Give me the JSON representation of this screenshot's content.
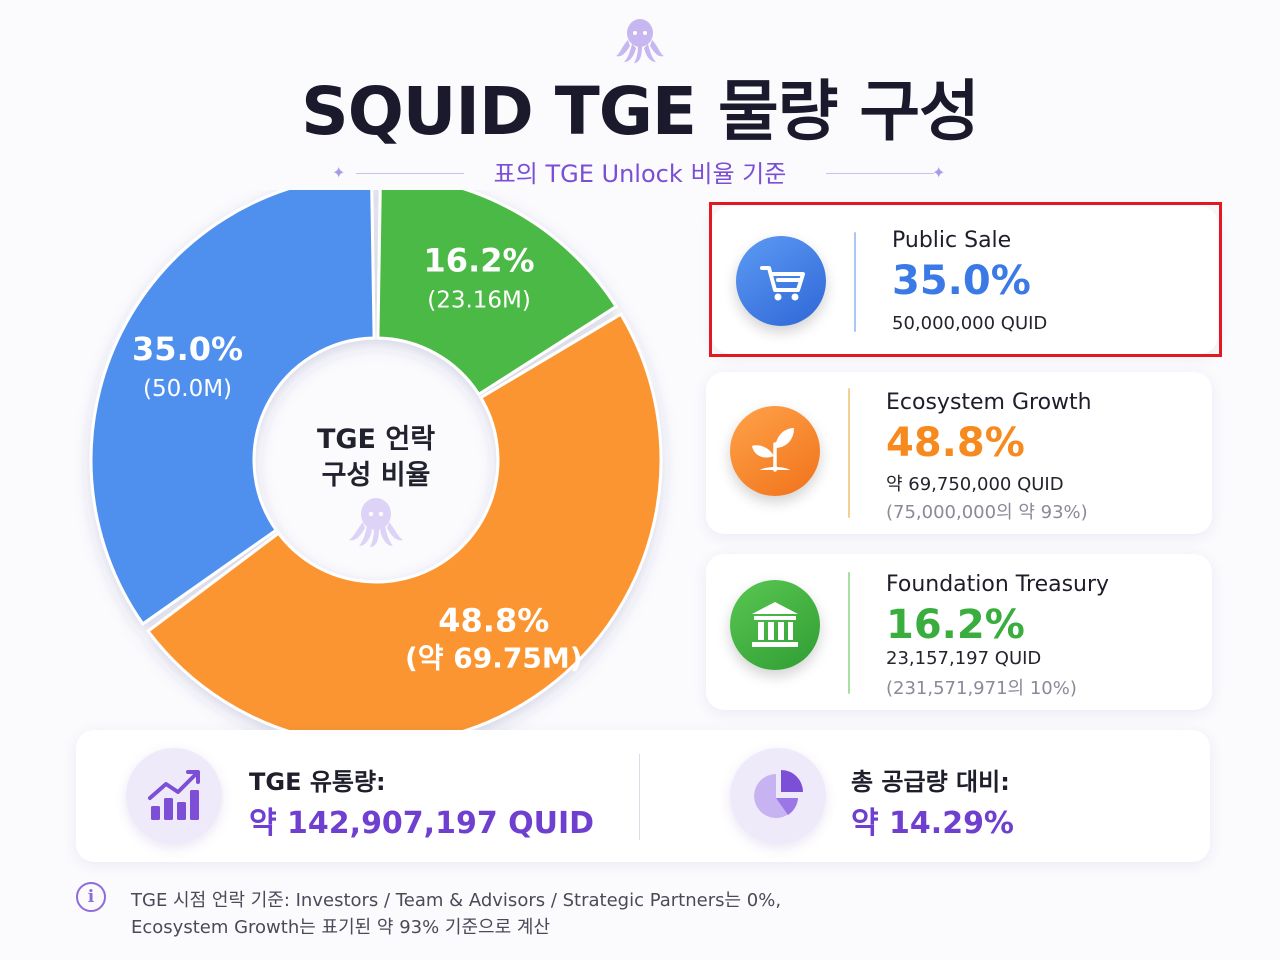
{
  "header": {
    "title": "SQUID TGE 물량 구성",
    "subtitle": "표의 TGE Unlock 비율 기준"
  },
  "chart_data": {
    "type": "pie",
    "center_label_line1": "TGE 언락",
    "center_label_line2": "구성 비율",
    "slices": [
      {
        "pct_label": "16.2%",
        "amount_label": "(23.16M)",
        "value": 16.2,
        "color": "#4cb944"
      },
      {
        "pct_label": "48.8%",
        "amount_label": "(약 69.75M)",
        "value": 48.8,
        "color": "#fb9531"
      },
      {
        "pct_label": "35.0%",
        "amount_label": "(50.0M)",
        "value": 35.0,
        "color": "#4f90ee"
      }
    ]
  },
  "cards": [
    {
      "title": "Public Sale",
      "pct": "35.0%",
      "amount": "50,000,000 QUID",
      "note": "",
      "color": "#3b7ae6",
      "icon": "cart-icon"
    },
    {
      "title": "Ecosystem Growth",
      "pct": "48.8%",
      "amount": "약 69,750,000 QUID",
      "note": "(75,000,000의 약 93%)",
      "color": "#f68a1e",
      "icon": "sprout-icon"
    },
    {
      "title": "Foundation Treasury",
      "pct": "16.2%",
      "amount": "23,157,197 QUID",
      "note": "(231,571,971의 10%)",
      "color": "#3aad3f",
      "icon": "bank-icon"
    }
  ],
  "summary": {
    "circulating_label": "TGE 유통량:",
    "circulating_value": "약 142,907,197 QUID",
    "ratio_label": "총 공급량 대비:",
    "ratio_value": "약 14.29%",
    "accent": "#6f3fd0"
  },
  "footnote": {
    "line1": "TGE 시점 언락 기준: Investors / Team & Advisors / Strategic Partners는 0%,",
    "line2": "Ecosystem Growth는 표기된 약 93% 기준으로 계산"
  }
}
